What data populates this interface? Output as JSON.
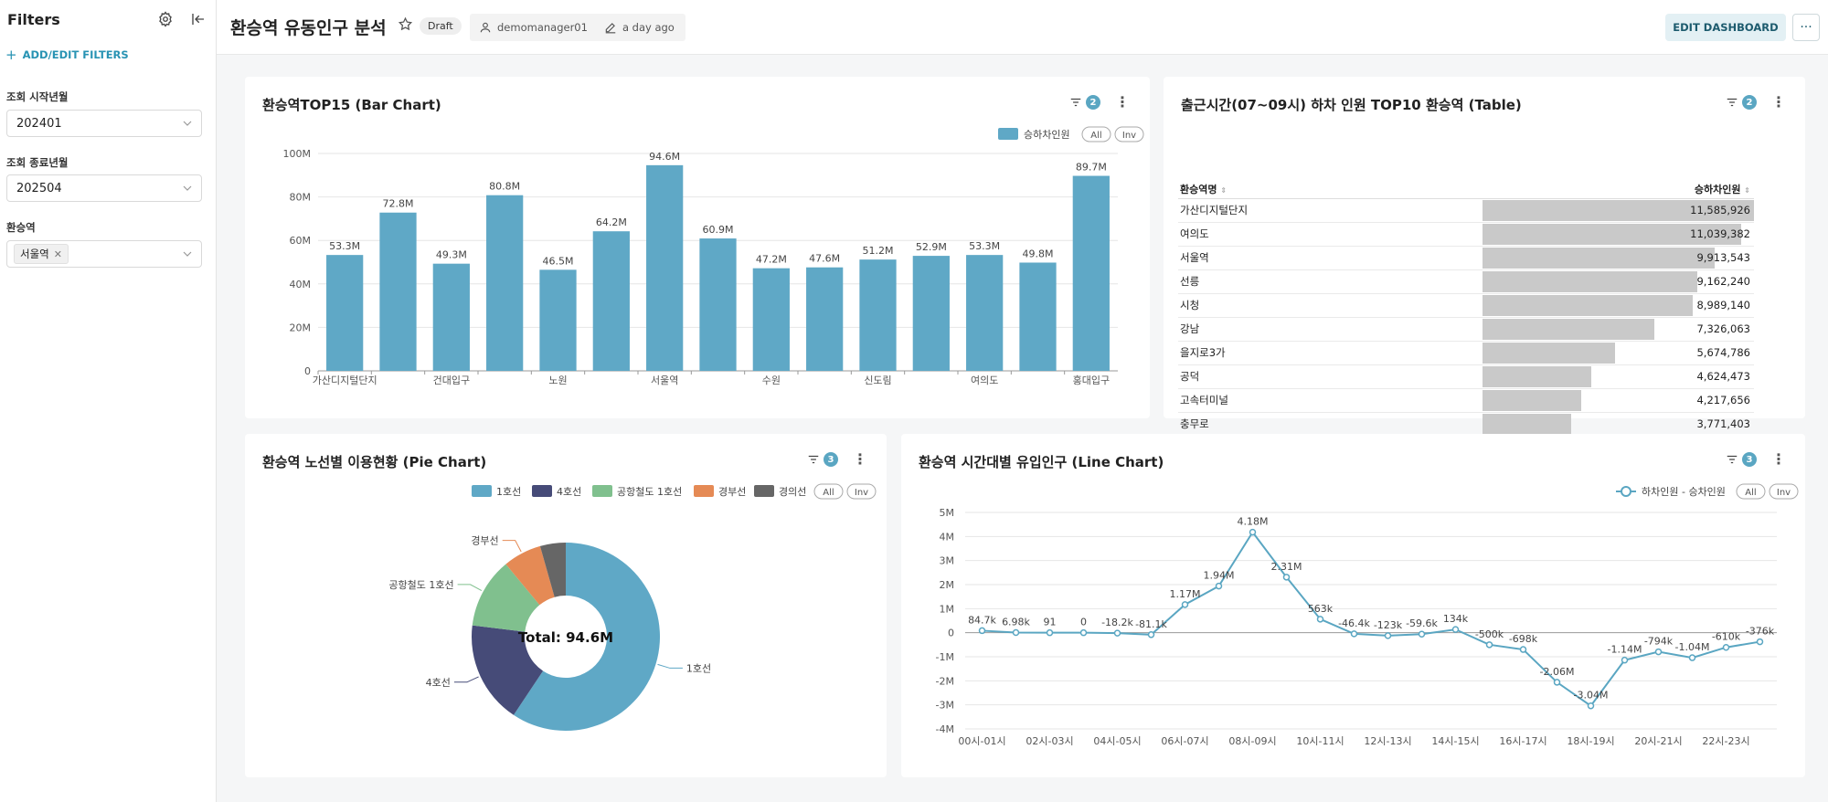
{
  "sidebar": {
    "title": "Filters",
    "add_filters": "ADD/EDIT FILTERS",
    "filters": [
      {
        "label": "조회 시작년월",
        "value": "202401"
      },
      {
        "label": "조회 종료년월",
        "value": "202504"
      },
      {
        "label": "환승역",
        "tag": "서울역"
      }
    ]
  },
  "header": {
    "title": "환승역 유동인구 분석",
    "status": "Draft",
    "owner": "demomanager01",
    "modified": "a day ago",
    "edit_button": "EDIT DASHBOARD",
    "more_label": "···"
  },
  "colors": {
    "accent": "#5aa6c2",
    "bar": "#5fa8c6",
    "table_bar": "#c9c9c9"
  },
  "panels": {
    "bar": {
      "title": "환승역TOP15 (Bar Chart)",
      "filter_count": "2",
      "legend_all": "All",
      "legend_inv": "Inv"
    },
    "table": {
      "title": "출근시간(07~09시) 하차 인원 TOP10 환승역 (Table)",
      "filter_count": "2",
      "col_name": "환승역명",
      "col_value": "승하차인원",
      "rows": [
        {
          "name": "가산디지털단지",
          "value": "11,585,926",
          "num": 11585926
        },
        {
          "name": "여의도",
          "value": "11,039,382",
          "num": 11039382
        },
        {
          "name": "서울역",
          "value": "9,913,543",
          "num": 9913543
        },
        {
          "name": "선릉",
          "value": "9,162,240",
          "num": 9162240
        },
        {
          "name": "시청",
          "value": "8,989,140",
          "num": 8989140
        },
        {
          "name": "강남",
          "value": "7,326,063",
          "num": 7326063
        },
        {
          "name": "을지로3가",
          "value": "5,674,786",
          "num": 5674786
        },
        {
          "name": "공덕",
          "value": "4,624,473",
          "num": 4624473
        },
        {
          "name": "고속터미널",
          "value": "4,217,656",
          "num": 4217656
        },
        {
          "name": "충무로",
          "value": "3,771,403",
          "num": 3771403
        }
      ]
    },
    "pie": {
      "title": "환승역 노선별 이용현황 (Pie Chart)",
      "filter_count": "3",
      "legend_all": "All",
      "legend_inv": "Inv"
    },
    "line": {
      "title": "환승역 시간대별 유입인구 (Line Chart)",
      "filter_count": "3",
      "legend_all": "All",
      "legend_inv": "Inv"
    }
  },
  "chart_data": [
    {
      "type": "bar",
      "series": [
        {
          "name": "승하차인원",
          "values": [
            53.3,
            72.8,
            49.3,
            80.8,
            46.5,
            64.2,
            94.6,
            60.9,
            47.2,
            47.6,
            51.2,
            52.9,
            53.3,
            49.8,
            89.7
          ]
        }
      ],
      "data_labels": [
        "53.3M",
        "72.8M",
        "49.3M",
        "80.8M",
        "46.5M",
        "64.2M",
        "94.6M",
        "60.9M",
        "47.2M",
        "47.6M",
        "51.2M",
        "52.9M",
        "53.3M",
        "49.8M",
        "89.7M"
      ],
      "x_tick_labels": [
        "가산디지털단지",
        "",
        "건대입구",
        "",
        "노원",
        "",
        "서울역",
        "",
        "수원",
        "",
        "신도림",
        "",
        "여의도",
        "",
        "홍대입구"
      ],
      "y_ticks": [
        "0",
        "20M",
        "40M",
        "60M",
        "80M",
        "100M"
      ],
      "ylim": [
        0,
        100
      ],
      "legend": "top-right",
      "grid": true
    },
    {
      "type": "pie",
      "donut": true,
      "center_label": "Total: 94.6M",
      "slices": [
        {
          "name": "1호선",
          "value": 54,
          "color": "#5fa8c6"
        },
        {
          "name": "4호선",
          "value": 16,
          "color": "#464b78"
        },
        {
          "name": "공항철도 1호선",
          "value": 11,
          "color": "#80c08e"
        },
        {
          "name": "경부선",
          "value": 6,
          "color": "#e58a55"
        },
        {
          "name": "경의선",
          "value": 4,
          "color": "#666666"
        }
      ],
      "legend": "top"
    },
    {
      "type": "line",
      "series": [
        {
          "name": "하차인원 - 승차인원",
          "values": [
            0.0847,
            0.00698,
            9.1e-05,
            0,
            -0.0182,
            -0.0811,
            1.17,
            1.94,
            4.18,
            2.31,
            0.563,
            -0.0464,
            -0.123,
            -0.0596,
            0.134,
            -0.5,
            -0.698,
            -2.06,
            -3.04,
            -1.14,
            -0.794,
            -1.04,
            -0.61,
            -0.376
          ]
        }
      ],
      "data_labels": [
        "84.7k",
        "6.98k",
        "91",
        "0",
        "-18.2k",
        "-81.1k",
        "1.17M",
        "1.94M",
        "4.18M",
        "2.31M",
        "563k",
        "-46.4k",
        "-123k",
        "-59.6k",
        "134k",
        "-500k",
        "-698k",
        "-2.06M",
        "-3.04M",
        "-1.14M",
        "-794k",
        "-1.04M",
        "-610k",
        "-376k"
      ],
      "x_tick_labels": [
        "00시-01시",
        "02시-03시",
        "04시-05시",
        "06시-07시",
        "08시-09시",
        "10시-11시",
        "12시-13시",
        "14시-15시",
        "16시-17시",
        "18시-19시",
        "20시-21시",
        "22시-23시"
      ],
      "y_ticks": [
        "-4M",
        "-3M",
        "-2M",
        "-1M",
        "0",
        "1M",
        "2M",
        "3M",
        "4M",
        "5M"
      ],
      "ylim": [
        -4,
        5
      ],
      "legend": "top-right",
      "grid": true
    }
  ]
}
